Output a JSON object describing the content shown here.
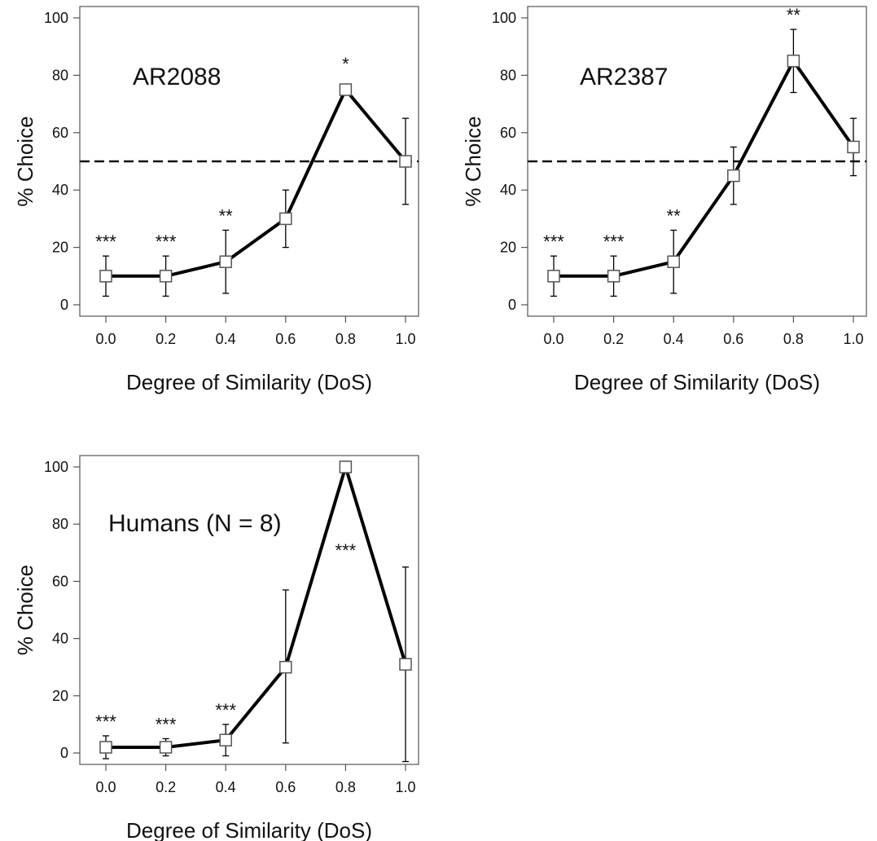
{
  "chart_data": [
    {
      "type": "line",
      "panel_label": "AR2088",
      "xlabel": "Degree of Similarity (DoS)",
      "ylabel": "% Choice",
      "x": [
        0.0,
        0.2,
        0.4,
        0.6,
        0.8,
        1.0
      ],
      "x_tick_labels": [
        "0.0",
        "0.2",
        "0.4",
        "0.6",
        "0.8",
        "1.0"
      ],
      "y_ticks": [
        0,
        20,
        40,
        60,
        80,
        100
      ],
      "ylim": [
        0,
        100
      ],
      "values": [
        10,
        10,
        15,
        30,
        75,
        50
      ],
      "error_low": [
        3,
        3,
        4,
        20,
        null,
        35
      ],
      "error_high": [
        17,
        17,
        26,
        40,
        null,
        65
      ],
      "reference_line": 50,
      "significance": [
        "***",
        "***",
        "**",
        "",
        "*",
        ""
      ],
      "grid": false
    },
    {
      "type": "line",
      "panel_label": "AR2387",
      "xlabel": "Degree of Similarity (DoS)",
      "ylabel": "% Choice",
      "x": [
        0.0,
        0.2,
        0.4,
        0.6,
        0.8,
        1.0
      ],
      "x_tick_labels": [
        "0.0",
        "0.2",
        "0.4",
        "0.6",
        "0.8",
        "1.0"
      ],
      "y_ticks": [
        0,
        20,
        40,
        60,
        80,
        100
      ],
      "ylim": [
        0,
        100
      ],
      "values": [
        10,
        10,
        15,
        45,
        85,
        55
      ],
      "error_low": [
        3,
        3,
        4,
        35,
        74,
        45
      ],
      "error_high": [
        17,
        17,
        26,
        55,
        96,
        65
      ],
      "reference_line": 50,
      "significance": [
        "***",
        "***",
        "**",
        "",
        "**",
        ""
      ],
      "grid": false
    },
    {
      "type": "line",
      "panel_label": "Humans (N = 8)",
      "xlabel": "Degree of Similarity (DoS)",
      "ylabel": "% Choice",
      "x": [
        0.0,
        0.2,
        0.4,
        0.6,
        0.8,
        1.0
      ],
      "x_tick_labels": [
        "0.0",
        "0.2",
        "0.4",
        "0.6",
        "0.8",
        "1.0"
      ],
      "y_ticks": [
        0,
        20,
        40,
        60,
        80,
        100
      ],
      "ylim": [
        0,
        100
      ],
      "values": [
        2,
        2,
        4.5,
        30,
        100,
        31
      ],
      "error_low": [
        -2,
        -1,
        -1,
        3.5,
        null,
        -3
      ],
      "error_high": [
        6,
        5,
        10,
        57,
        null,
        65
      ],
      "reference_line": null,
      "significance": [
        "***",
        "***",
        "***",
        "",
        "***",
        ""
      ],
      "grid": false
    }
  ]
}
